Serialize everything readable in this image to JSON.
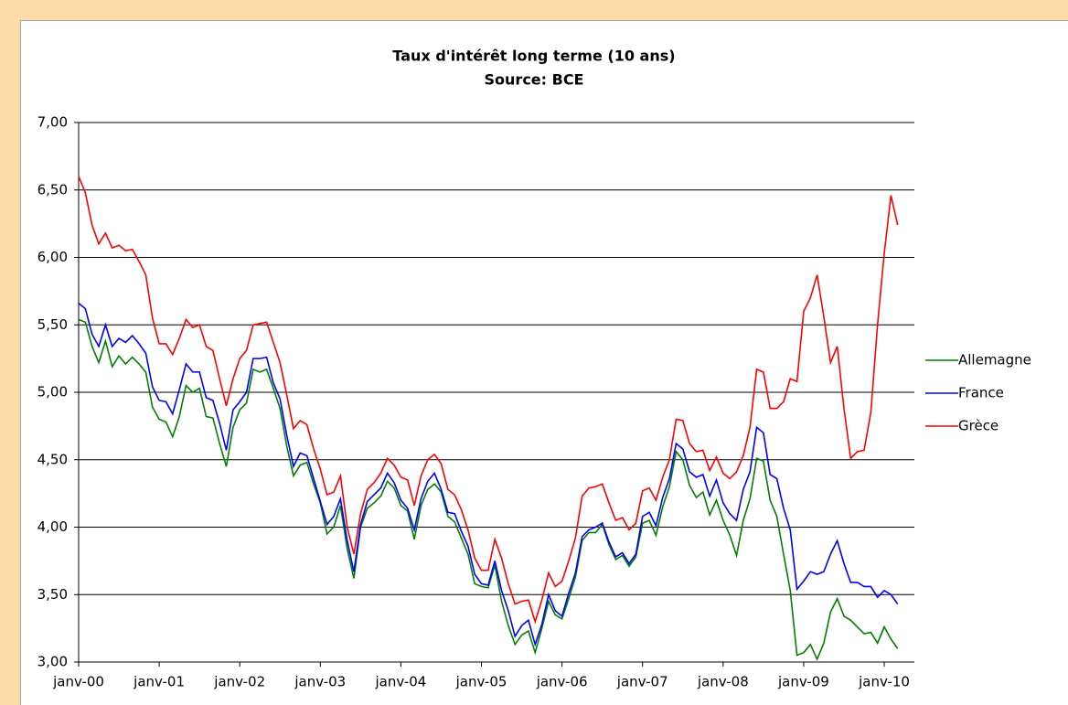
{
  "chart_data": {
    "type": "line",
    "title": "Taux d'intérêt long terme (10 ans)",
    "subtitle": "Source: BCE",
    "categories": [
      "janv-00",
      null,
      null,
      null,
      null,
      null,
      null,
      null,
      null,
      null,
      null,
      null,
      "janv-01",
      null,
      null,
      null,
      null,
      null,
      null,
      null,
      null,
      null,
      null,
      null,
      "janv-02",
      null,
      null,
      null,
      null,
      null,
      null,
      null,
      null,
      null,
      null,
      null,
      "janv-03",
      null,
      null,
      null,
      null,
      null,
      null,
      null,
      null,
      null,
      null,
      null,
      "janv-04",
      null,
      null,
      null,
      null,
      null,
      null,
      null,
      null,
      null,
      null,
      null,
      "janv-05",
      null,
      null,
      null,
      null,
      null,
      null,
      null,
      null,
      null,
      null,
      null,
      "janv-06",
      null,
      null,
      null,
      null,
      null,
      null,
      null,
      null,
      null,
      null,
      null,
      "janv-07",
      null,
      null,
      null,
      null,
      null,
      null,
      null,
      null,
      null,
      null,
      null,
      "janv-08",
      null,
      null,
      null,
      null,
      null,
      null,
      null,
      null,
      null,
      null,
      null,
      "janv-09",
      null,
      null,
      null,
      null,
      null,
      null,
      null,
      null,
      null,
      null,
      null,
      "janv-10",
      null,
      null
    ],
    "series": [
      {
        "name": "Allemagne",
        "color": "#008000",
        "values": [
          5.54,
          5.52,
          5.34,
          5.22,
          5.38,
          5.19,
          5.27,
          5.21,
          5.26,
          5.21,
          5.15,
          4.89,
          4.8,
          4.78,
          4.67,
          4.82,
          5.05,
          5.0,
          5.03,
          4.82,
          4.81,
          4.62,
          4.45,
          4.74,
          4.87,
          4.92,
          5.17,
          5.15,
          5.17,
          5.03,
          4.88,
          4.6,
          4.38,
          4.46,
          4.48,
          4.32,
          4.18,
          3.95,
          4.0,
          4.16,
          3.84,
          3.62,
          4.0,
          4.14,
          4.18,
          4.23,
          4.34,
          4.29,
          4.16,
          4.12,
          3.91,
          4.16,
          4.28,
          4.32,
          4.26,
          4.08,
          4.04,
          3.92,
          3.8,
          3.58,
          3.56,
          3.55,
          3.72,
          3.45,
          3.27,
          3.13,
          3.2,
          3.23,
          3.07,
          3.25,
          3.45,
          3.35,
          3.32,
          3.47,
          3.63,
          3.9,
          3.96,
          3.96,
          4.02,
          3.87,
          3.76,
          3.79,
          3.71,
          3.78,
          4.03,
          4.05,
          3.94,
          4.15,
          4.3,
          4.56,
          4.5,
          4.31,
          4.22,
          4.26,
          4.09,
          4.2,
          4.05,
          3.94,
          3.79,
          4.05,
          4.21,
          4.51,
          4.49,
          4.2,
          4.08,
          3.8,
          3.53,
          3.05,
          3.07,
          3.13,
          3.02,
          3.14,
          3.37,
          3.47,
          3.34,
          3.31,
          3.26,
          3.21,
          3.22,
          3.14,
          3.26,
          3.17,
          3.1
        ]
      },
      {
        "name": "France",
        "color": "#0000ff",
        "values": [
          5.66,
          5.62,
          5.43,
          5.34,
          5.5,
          5.34,
          5.4,
          5.37,
          5.42,
          5.36,
          5.29,
          5.04,
          4.94,
          4.93,
          4.84,
          5.02,
          5.21,
          5.15,
          5.15,
          4.96,
          4.94,
          4.77,
          4.57,
          4.87,
          4.93,
          5.0,
          5.25,
          5.25,
          5.26,
          5.07,
          4.95,
          4.68,
          4.45,
          4.55,
          4.53,
          4.36,
          4.19,
          4.02,
          4.08,
          4.21,
          3.9,
          3.67,
          4.02,
          4.19,
          4.24,
          4.29,
          4.4,
          4.33,
          4.2,
          4.14,
          3.98,
          4.21,
          4.34,
          4.4,
          4.28,
          4.11,
          4.1,
          3.97,
          3.86,
          3.65,
          3.58,
          3.57,
          3.75,
          3.53,
          3.38,
          3.19,
          3.27,
          3.31,
          3.13,
          3.28,
          3.5,
          3.38,
          3.34,
          3.51,
          3.66,
          3.93,
          3.98,
          4.0,
          4.03,
          3.89,
          3.78,
          3.81,
          3.73,
          3.8,
          4.08,
          4.11,
          4.01,
          4.22,
          4.36,
          4.62,
          4.58,
          4.41,
          4.37,
          4.39,
          4.23,
          4.35,
          4.18,
          4.1,
          4.05,
          4.28,
          4.41,
          4.74,
          4.7,
          4.39,
          4.36,
          4.14,
          3.98,
          3.54,
          3.6,
          3.67,
          3.65,
          3.67,
          3.8,
          3.9,
          3.73,
          3.59,
          3.59,
          3.56,
          3.56,
          3.48,
          3.53,
          3.5,
          3.43
        ]
      },
      {
        "name": "Grèce",
        "color": "#ff0000",
        "values": [
          6.6,
          6.48,
          6.24,
          6.1,
          6.18,
          6.07,
          6.09,
          6.05,
          6.06,
          5.97,
          5.87,
          5.55,
          5.36,
          5.36,
          5.28,
          5.4,
          5.54,
          5.48,
          5.5,
          5.34,
          5.31,
          5.1,
          4.9,
          5.1,
          5.25,
          5.31,
          5.5,
          5.51,
          5.52,
          5.37,
          5.22,
          4.98,
          4.73,
          4.79,
          4.76,
          4.58,
          4.43,
          4.24,
          4.26,
          4.38,
          4.0,
          3.8,
          4.1,
          4.28,
          4.33,
          4.4,
          4.51,
          4.46,
          4.37,
          4.35,
          4.16,
          4.38,
          4.5,
          4.54,
          4.47,
          4.28,
          4.24,
          4.13,
          3.98,
          3.77,
          3.68,
          3.68,
          3.91,
          3.77,
          3.58,
          3.43,
          3.45,
          3.46,
          3.3,
          3.46,
          3.66,
          3.56,
          3.6,
          3.75,
          3.92,
          4.23,
          4.29,
          4.3,
          4.32,
          4.18,
          4.05,
          4.07,
          3.98,
          4.03,
          4.27,
          4.29,
          4.2,
          4.37,
          4.5,
          4.8,
          4.79,
          4.62,
          4.56,
          4.57,
          4.42,
          4.52,
          4.4,
          4.36,
          4.41,
          4.53,
          4.74,
          5.17,
          5.15,
          4.88,
          4.88,
          4.93,
          5.1,
          5.08,
          5.6,
          5.7,
          5.87,
          5.56,
          5.22,
          5.34,
          4.88,
          4.51,
          4.56,
          4.57,
          4.85,
          5.5,
          6.03,
          6.46,
          6.24
        ]
      }
    ],
    "ylim": [
      3,
      7
    ],
    "yticks": [
      {
        "value": 3,
        "label": "3,00"
      },
      {
        "value": 3.5,
        "label": "3,50"
      },
      {
        "value": 4,
        "label": "4,00"
      },
      {
        "value": 4.5,
        "label": "4,50"
      },
      {
        "value": 5,
        "label": "5,00"
      },
      {
        "value": 5.5,
        "label": "5,50"
      },
      {
        "value": 6,
        "label": "6,00"
      },
      {
        "value": 6.5,
        "label": "6,50"
      },
      {
        "value": 7,
        "label": "7,00"
      }
    ],
    "grid": true,
    "legend": "right"
  }
}
